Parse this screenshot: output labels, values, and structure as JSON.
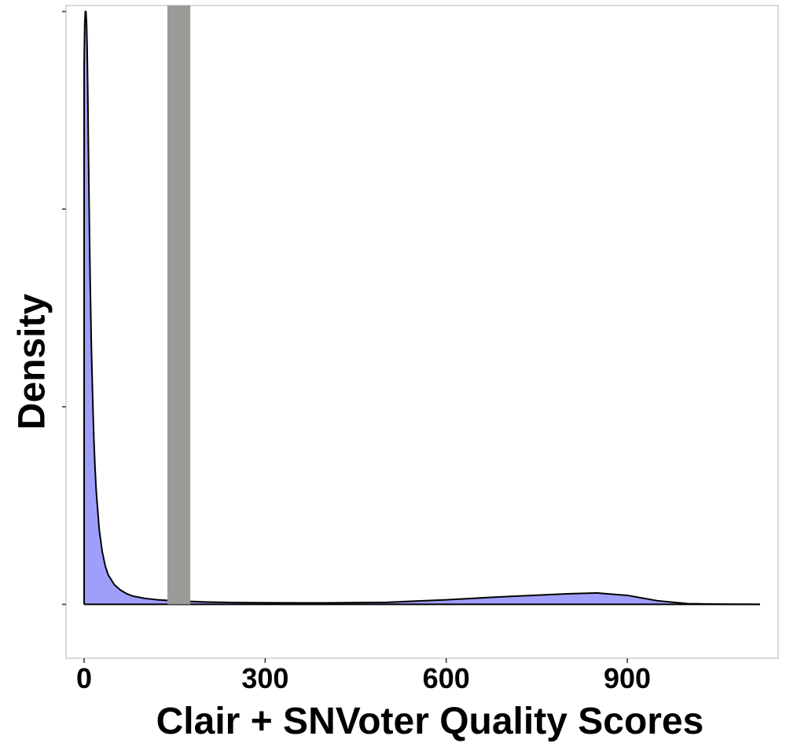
{
  "chart_data": {
    "type": "area",
    "xlabel": "Clair + SNVoter Quality Scores",
    "ylabel": "Density",
    "x_ticks": [
      0,
      300,
      600,
      900
    ],
    "xlim": [
      -30,
      1150
    ],
    "ylim": [
      -0.0009,
      0.01
    ],
    "y_tick_labels_shown": false,
    "grid": false,
    "fill_color": "#9f9ffb",
    "line_color": "#000000",
    "highlight_band": {
      "x_start": 138,
      "x_end": 176,
      "color": "#9a9b97"
    },
    "density": {
      "x": [
        0,
        1,
        2,
        3,
        4,
        5,
        6,
        7,
        8,
        9,
        10,
        12,
        14,
        16,
        18,
        20,
        25,
        30,
        35,
        40,
        50,
        60,
        70,
        80,
        100,
        120,
        150,
        200,
        250,
        300,
        400,
        500,
        600,
        700,
        800,
        850,
        900,
        950,
        1000,
        1050,
        1120
      ],
      "y": [
        0.009,
        0.0097,
        0.0099,
        0.0099,
        0.0097,
        0.0093,
        0.0086,
        0.0077,
        0.0069,
        0.0061,
        0.0054,
        0.0043,
        0.0035,
        0.0028,
        0.0023,
        0.0019,
        0.00125,
        0.00088,
        0.00064,
        0.00049,
        0.00033,
        0.00024,
        0.00018,
        0.00014,
        0.0001,
        7.8e-05,
        5.8e-05,
        4e-05,
        3e-05,
        2.6e-05,
        2.5e-05,
        3.3e-05,
        7.5e-05,
        0.00013,
        0.000175,
        0.00019,
        0.00015,
        6e-05,
        1.2e-05,
        3e-06,
        0.0
      ]
    }
  }
}
